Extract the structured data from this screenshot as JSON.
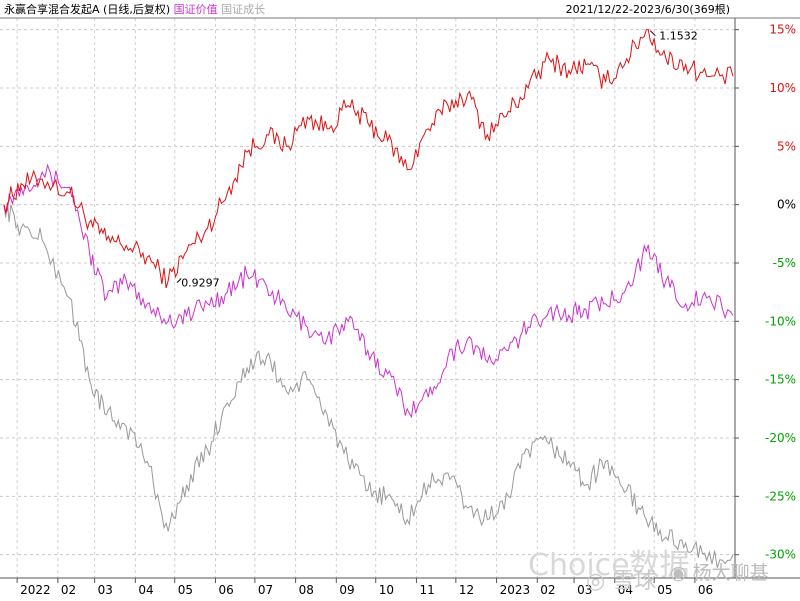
{
  "header": {
    "fund_name": "永赢合享混合发起A",
    "mode": "(日线,后复权)",
    "legend_items": [
      {
        "label": "国证价值",
        "color": "#cc33cc"
      },
      {
        "label": "国证成长",
        "color": "#aaaaaa"
      }
    ],
    "date_range": "2021/12/22-2023/6/30(369根)"
  },
  "watermark": {
    "choice": "Choice数据",
    "xueqiu": "雪球",
    "author": "杨大聊基"
  },
  "colors": {
    "fund": "#dd1111",
    "value": "#cc33cc",
    "growth": "#999999",
    "up_label": "#dd1111",
    "down_label": "#00a000",
    "zero_label": "#000000"
  },
  "chart_data": {
    "type": "line",
    "ylim": [
      -32,
      16
    ],
    "grid": true,
    "y_ticks": [
      {
        "v": 15,
        "label": "15%"
      },
      {
        "v": 10,
        "label": "10%"
      },
      {
        "v": 5,
        "label": "5%"
      },
      {
        "v": 0,
        "label": "0%"
      },
      {
        "v": -5,
        "label": "-5%"
      },
      {
        "v": -10,
        "label": "-10%"
      },
      {
        "v": -15,
        "label": "-15%"
      },
      {
        "v": -20,
        "label": "-20%"
      },
      {
        "v": -25,
        "label": "-25%"
      },
      {
        "v": -30,
        "label": "-30%"
      }
    ],
    "x_ticks": [
      "2022",
      "02",
      "03",
      "04",
      "05",
      "06",
      "07",
      "08",
      "09",
      "10",
      "11",
      "12",
      "2023",
      "02",
      "03",
      "04",
      "05",
      "06"
    ],
    "x": [
      "2021-12-22",
      "2022-01-04",
      "2022-01-20",
      "2022-02-10",
      "2022-02-25",
      "2022-03-10",
      "2022-03-25",
      "2022-04-10",
      "2022-04-26",
      "2022-05-10",
      "2022-05-26",
      "2022-06-10",
      "2022-06-25",
      "2022-07-10",
      "2022-07-25",
      "2022-08-10",
      "2022-08-25",
      "2022-09-10",
      "2022-09-25",
      "2022-10-10",
      "2022-10-25",
      "2022-11-10",
      "2022-11-25",
      "2022-12-10",
      "2022-12-25",
      "2023-01-10",
      "2023-01-25",
      "2023-02-10",
      "2023-02-25",
      "2023-03-10",
      "2023-03-25",
      "2023-04-10",
      "2023-04-25",
      "2023-05-10",
      "2023-05-25",
      "2023-06-10",
      "2023-06-30"
    ],
    "series": [
      {
        "name": "永赢合享混合发起A",
        "color": "#dd1111",
        "values": [
          0,
          1.8,
          2.2,
          1.0,
          -1.5,
          -3.0,
          -3.5,
          -4.5,
          -6.5,
          -4.0,
          -2.0,
          1.0,
          4.5,
          6.0,
          5.0,
          7.5,
          6.5,
          8.5,
          7.0,
          5.5,
          3.0,
          6.5,
          8.5,
          9.5,
          6.0,
          8.0,
          10.0,
          12.5,
          11.5,
          12.0,
          10.5,
          12.5,
          15.0,
          12.5,
          12.0,
          11.0,
          11.0
        ]
      },
      {
        "name": "国证价值",
        "color": "#cc33cc",
        "values": [
          0,
          1.5,
          2.8,
          1.5,
          -4.0,
          -8.0,
          -6.5,
          -8.5,
          -10.0,
          -9.5,
          -8.5,
          -7.5,
          -6.0,
          -7.0,
          -9.0,
          -10.5,
          -11.5,
          -10.0,
          -12.5,
          -14.5,
          -17.5,
          -16.5,
          -13.0,
          -11.5,
          -13.5,
          -12.5,
          -10.5,
          -9.0,
          -9.5,
          -9.0,
          -8.5,
          -7.0,
          -4.0,
          -6.5,
          -8.5,
          -8.0,
          -9.5
        ]
      },
      {
        "name": "国证成长",
        "color": "#999999",
        "values": [
          0,
          -2.0,
          -3.0,
          -8.0,
          -15.0,
          -18.0,
          -19.0,
          -22.0,
          -28.0,
          -24.0,
          -21.0,
          -17.0,
          -14.0,
          -13.0,
          -16.0,
          -15.0,
          -18.0,
          -22.0,
          -24.5,
          -25.0,
          -27.0,
          -24.0,
          -23.0,
          -26.0,
          -27.0,
          -25.0,
          -21.0,
          -20.5,
          -22.0,
          -24.0,
          -22.0,
          -24.5,
          -27.0,
          -28.5,
          -29.0,
          -30.5,
          -30.0
        ]
      }
    ],
    "annotations": [
      {
        "label": "1.1532",
        "x": "2023-04-25",
        "y": 15.0
      },
      {
        "label": "0.9297",
        "x": "2022-04-26",
        "y": -6.5
      }
    ]
  }
}
